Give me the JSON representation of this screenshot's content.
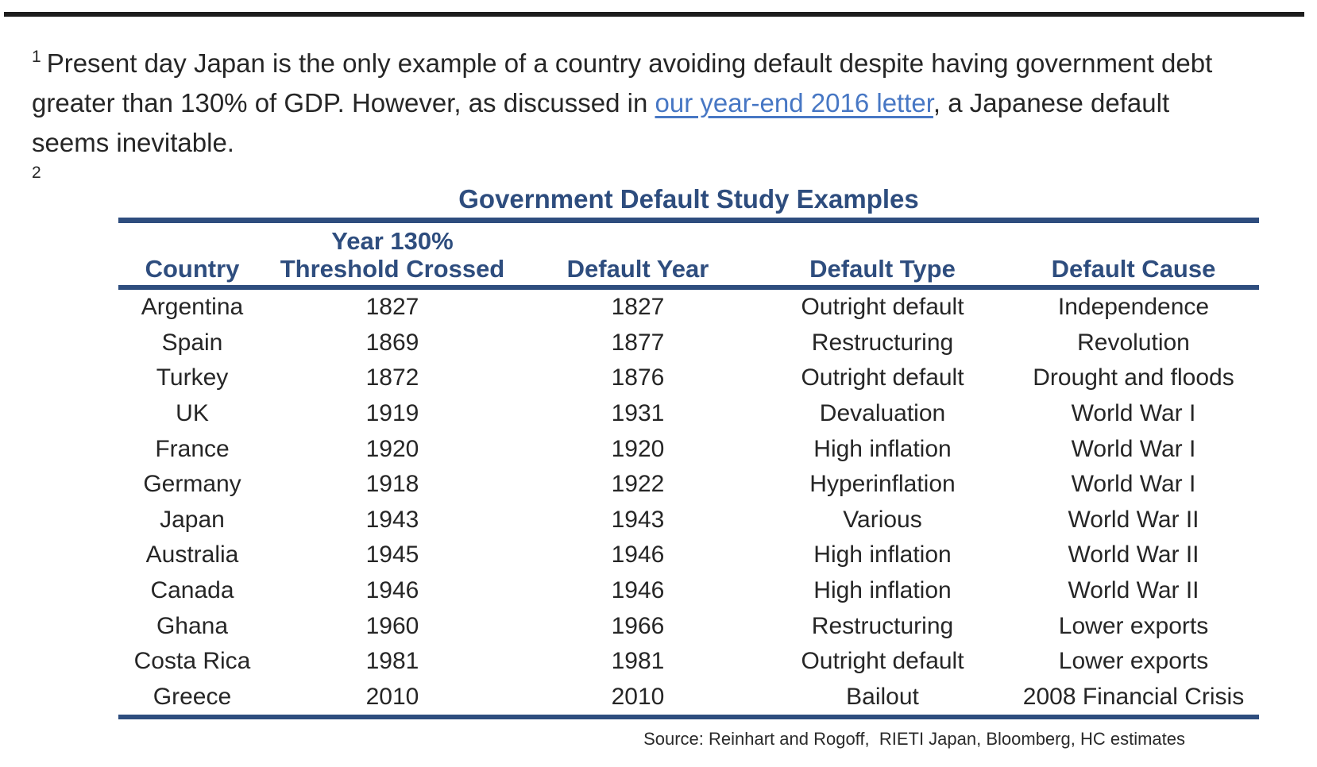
{
  "document": {
    "footnote_1": {
      "marker": "1",
      "line1": "Present day Japan is the only example of a country avoiding default despite having government debt",
      "line2_before_link": "greater than 130% of GDP. However, as discussed in ",
      "line2_link": "our year-end 2016 letter",
      "line2_after_link": ", a Japanese default",
      "line3": "seems inevitable."
    },
    "footnote_2_marker": "2"
  },
  "table": {
    "title": "Government Default Study Examples",
    "headers": {
      "country": "Country",
      "threshold_line1": "Year 130%",
      "threshold_line2": "Threshold Crossed",
      "default_year": "Default Year",
      "default_type": "Default Type",
      "default_cause": "Default Cause"
    },
    "column_keys": [
      "country",
      "year_130_threshold_crossed",
      "default_year",
      "default_type",
      "default_cause"
    ],
    "rows": [
      {
        "country": "Argentina",
        "year_130_threshold_crossed": "1827",
        "default_year": "1827",
        "default_type": "Outright default",
        "default_cause": "Independence"
      },
      {
        "country": "Spain",
        "year_130_threshold_crossed": "1869",
        "default_year": "1877",
        "default_type": "Restructuring",
        "default_cause": "Revolution"
      },
      {
        "country": "Turkey",
        "year_130_threshold_crossed": "1872",
        "default_year": "1876",
        "default_type": "Outright default",
        "default_cause": "Drought and floods"
      },
      {
        "country": "UK",
        "year_130_threshold_crossed": "1919",
        "default_year": "1931",
        "default_type": "Devaluation",
        "default_cause": "World War I"
      },
      {
        "country": "France",
        "year_130_threshold_crossed": "1920",
        "default_year": "1920",
        "default_type": "High inflation",
        "default_cause": "World War I"
      },
      {
        "country": "Germany",
        "year_130_threshold_crossed": "1918",
        "default_year": "1922",
        "default_type": "Hyperinflation",
        "default_cause": "World War I"
      },
      {
        "country": "Japan",
        "year_130_threshold_crossed": "1943",
        "default_year": "1943",
        "default_type": "Various",
        "default_cause": "World War II"
      },
      {
        "country": "Australia",
        "year_130_threshold_crossed": "1945",
        "default_year": "1946",
        "default_type": "High inflation",
        "default_cause": "World War II"
      },
      {
        "country": "Canada",
        "year_130_threshold_crossed": "1946",
        "default_year": "1946",
        "default_type": "High inflation",
        "default_cause": "World War II"
      },
      {
        "country": "Ghana",
        "year_130_threshold_crossed": "1960",
        "default_year": "1966",
        "default_type": "Restructuring",
        "default_cause": "Lower exports"
      },
      {
        "country": "Costa Rica",
        "year_130_threshold_crossed": "1981",
        "default_year": "1981",
        "default_type": "Outright default",
        "default_cause": "Lower exports"
      },
      {
        "country": "Greece",
        "year_130_threshold_crossed": "2010",
        "default_year": "2010",
        "default_type": "Bailout",
        "default_cause": "2008 Financial Crisis"
      }
    ],
    "source": "Source: Reinhart and Rogoff,  RIETI Japan, Bloomberg, HC estimates"
  },
  "colors": {
    "navy": "#2e4d7e",
    "link_blue": "#4777c4",
    "text": "#262626",
    "rule_black": "#1d1d1d"
  }
}
